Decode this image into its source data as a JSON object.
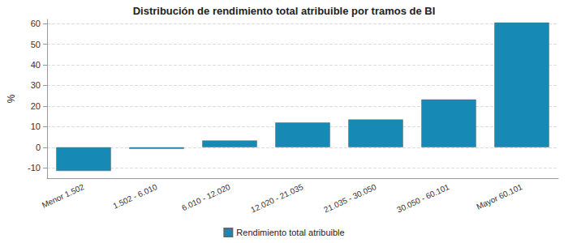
{
  "chart_data": {
    "type": "bar",
    "title": "Distribución de rendimiento total atribuible por tramos de BI",
    "y_label": "%",
    "categories": [
      "Menor 1.502",
      "1.502 - 6.010",
      "6.010 - 12.020",
      "12.020 - 21.035",
      "21.035 - 30.050",
      "30.050 - 60.101",
      "Mayor 60.101"
    ],
    "series": [
      {
        "name": "Rendimiento total atribuible",
        "color": "#1689b5",
        "values": [
          -11.5,
          -0.8,
          3.3,
          12.0,
          13.5,
          23.2,
          60.5
        ]
      }
    ],
    "ylim": [
      -15,
      62
    ],
    "yticks": [
      -10,
      0,
      10,
      20,
      30,
      40,
      50,
      60
    ],
    "grid": true,
    "legend": "bottom"
  }
}
